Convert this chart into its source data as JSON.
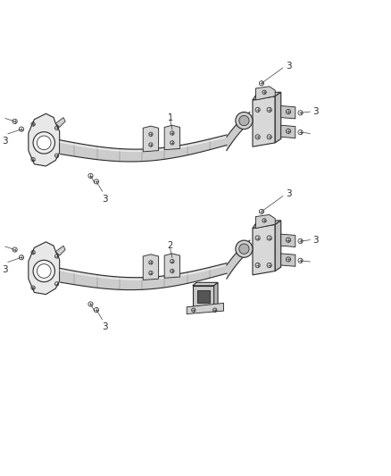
{
  "bg_color": "#ffffff",
  "line_color": "#2a2a2a",
  "fill_color": "#d8d8d8",
  "fig_width": 4.38,
  "fig_height": 5.33,
  "dpi": 100,
  "assemblies": [
    {
      "ox": 0.5,
      "oy": 0.745,
      "label": "1",
      "has_hitch": false
    },
    {
      "ox": 0.5,
      "oy": 0.415,
      "label": "2",
      "has_hitch": true
    }
  ]
}
